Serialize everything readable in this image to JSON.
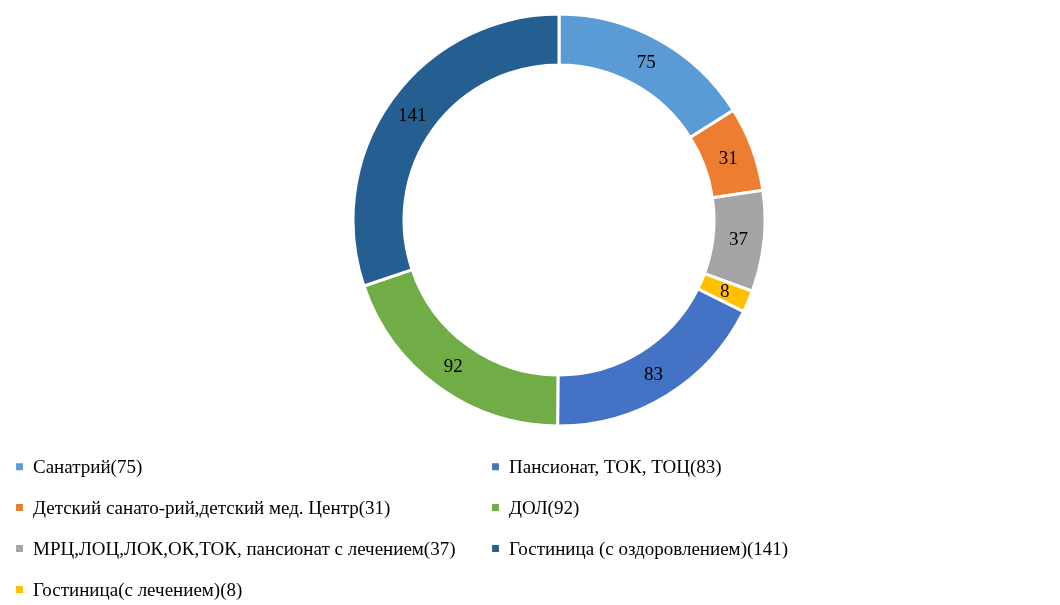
{
  "chart_data": {
    "type": "donut",
    "categories": [
      "Санатрий(75)",
      "Детский санато-рий,детский мед. Центр(31)",
      "МРЦ,ЛОЦ,ЛОК,ОК,ТОК, пансионат с лечением(37)",
      "Гостиница(с лечением)(8)",
      "Пансионат, ТОК, ТОЦ(83)",
      "ДОЛ(92)",
      "Гостиница (с оздоровлением)(141)"
    ],
    "values": [
      75,
      31,
      37,
      8,
      83,
      92,
      141
    ],
    "colors": [
      "#5b9bd5",
      "#ed7d31",
      "#a5a5a5",
      "#ffc000",
      "#4472c4",
      "#70ad47",
      "#255e91"
    ],
    "data_labels": true,
    "legend": "bottom"
  }
}
